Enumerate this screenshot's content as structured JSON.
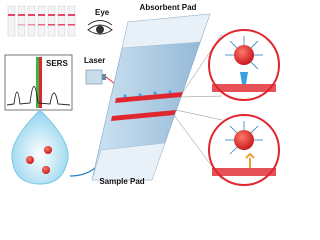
{
  "labels": {
    "absorbent_pad": "Absorbent Pad",
    "eye": "Eye",
    "sers": "SERS",
    "laser": "Laser",
    "sample_pad": "Sample Pad"
  }
}
